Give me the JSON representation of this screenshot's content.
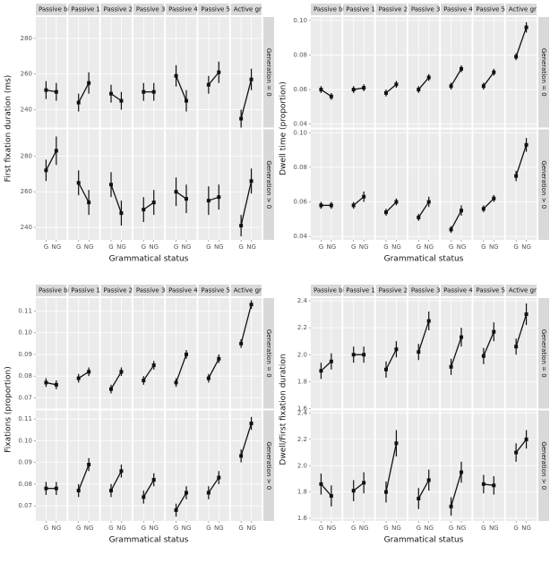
{
  "chart_data": [
    {
      "type": "facet-line",
      "y_label": "First fixation duration (ms)",
      "x_label": "Grammatical status",
      "categories": [
        "G",
        "NG"
      ],
      "columns": [
        "Passive bl",
        "Passive 1",
        "Passive 2",
        "Passive 3",
        "Passive 4",
        "Passive 5",
        "Active gr"
      ],
      "rows": [
        {
          "label": "Generation = 0",
          "ylim": [
            230,
            292
          ],
          "yticks": [
            240,
            260,
            280
          ]
        },
        {
          "label": "Generation > 0",
          "ylim": [
            233,
            295
          ],
          "yticks": [
            240,
            260,
            280
          ]
        }
      ],
      "panels": [
        [
          {
            "values": [
              251,
              250
            ],
            "errors": [
              5,
              5
            ]
          },
          {
            "values": [
              244,
              255
            ],
            "errors": [
              5,
              6
            ]
          },
          {
            "values": [
              249,
              245
            ],
            "errors": [
              5,
              5
            ]
          },
          {
            "values": [
              250,
              250
            ],
            "errors": [
              5,
              5
            ]
          },
          {
            "values": [
              259,
              245
            ],
            "errors": [
              6,
              6
            ]
          },
          {
            "values": [
              254,
              261
            ],
            "errors": [
              5,
              6
            ]
          },
          {
            "values": [
              235,
              257
            ],
            "errors": [
              5,
              6
            ]
          }
        ],
        [
          {
            "values": [
              272,
              283
            ],
            "errors": [
              6,
              8
            ]
          },
          {
            "values": [
              265,
              254
            ],
            "errors": [
              7,
              7
            ]
          },
          {
            "values": [
              264,
              248
            ],
            "errors": [
              7,
              7
            ]
          },
          {
            "values": [
              250,
              254
            ],
            "errors": [
              7,
              7
            ]
          },
          {
            "values": [
              260,
              256
            ],
            "errors": [
              8,
              8
            ]
          },
          {
            "values": [
              255,
              257
            ],
            "errors": [
              8,
              7
            ]
          },
          {
            "values": [
              241,
              266
            ],
            "errors": [
              6,
              7
            ]
          }
        ]
      ]
    },
    {
      "type": "facet-line",
      "y_label": "Dwell time (proportion)",
      "x_label": "Grammatical status",
      "categories": [
        "G",
        "NG"
      ],
      "columns": [
        "Passive bl",
        "Passive 1",
        "Passive 2",
        "Passive 3",
        "Passive 4",
        "Passive 5",
        "Active gr"
      ],
      "rows": [
        {
          "label": "Generation = 0",
          "ylim": [
            0.038,
            0.102
          ],
          "yticks": [
            0.04,
            0.06,
            0.08,
            {
              "value": 0.1,
              "label": "0.10"
            }
          ]
        },
        {
          "label": "Generation > 0",
          "ylim": [
            0.038,
            0.102
          ],
          "yticks": [
            0.04,
            0.06,
            0.08,
            {
              "value": 0.1,
              "label": "0.10"
            }
          ]
        }
      ],
      "panels": [
        [
          {
            "values": [
              0.06,
              0.056
            ],
            "errors": [
              0.002,
              0.002
            ]
          },
          {
            "values": [
              0.06,
              0.061
            ],
            "errors": [
              0.002,
              0.002
            ]
          },
          {
            "values": [
              0.058,
              0.063
            ],
            "errors": [
              0.002,
              0.002
            ]
          },
          {
            "values": [
              0.06,
              0.067
            ],
            "errors": [
              0.002,
              0.002
            ]
          },
          {
            "values": [
              0.062,
              0.072
            ],
            "errors": [
              0.002,
              0.002
            ]
          },
          {
            "values": [
              0.062,
              0.07
            ],
            "errors": [
              0.002,
              0.002
            ]
          },
          {
            "values": [
              0.079,
              0.096
            ],
            "errors": [
              0.002,
              0.003
            ]
          }
        ],
        [
          {
            "values": [
              0.058,
              0.058
            ],
            "errors": [
              0.002,
              0.002
            ]
          },
          {
            "values": [
              0.058,
              0.063
            ],
            "errors": [
              0.002,
              0.003
            ]
          },
          {
            "values": [
              0.054,
              0.06
            ],
            "errors": [
              0.002,
              0.002
            ]
          },
          {
            "values": [
              0.051,
              0.06
            ],
            "errors": [
              0.002,
              0.003
            ]
          },
          {
            "values": [
              0.044,
              0.055
            ],
            "errors": [
              0.002,
              0.003
            ]
          },
          {
            "values": [
              0.056,
              0.062
            ],
            "errors": [
              0.002,
              0.002
            ]
          },
          {
            "values": [
              0.075,
              0.093
            ],
            "errors": [
              0.003,
              0.004
            ]
          }
        ]
      ]
    },
    {
      "type": "facet-line",
      "y_label": "Fixations (proportion)",
      "x_label": "Grammatical status",
      "categories": [
        "G",
        "NG"
      ],
      "columns": [
        "Passive bl",
        "Passive 1",
        "Passive 2",
        "Passive 3",
        "Passive 4",
        "Passive 5",
        "Active gr"
      ],
      "rows": [
        {
          "label": "Generation = 0",
          "ylim": [
            0.065,
            0.116
          ],
          "yticks": [
            0.07,
            0.08,
            0.09,
            {
              "value": 0.1,
              "label": "0.10"
            },
            0.11
          ]
        },
        {
          "label": "Generation > 0",
          "ylim": [
            0.063,
            0.114
          ],
          "yticks": [
            0.07,
            0.08,
            0.09,
            {
              "value": 0.1,
              "label": "0.10"
            },
            0.11
          ]
        }
      ],
      "panels": [
        [
          {
            "values": [
              0.077,
              0.076
            ],
            "errors": [
              0.002,
              0.002
            ]
          },
          {
            "values": [
              0.079,
              0.082
            ],
            "errors": [
              0.002,
              0.002
            ]
          },
          {
            "values": [
              0.074,
              0.082
            ],
            "errors": [
              0.002,
              0.002
            ]
          },
          {
            "values": [
              0.078,
              0.085
            ],
            "errors": [
              0.002,
              0.002
            ]
          },
          {
            "values": [
              0.077,
              0.09
            ],
            "errors": [
              0.002,
              0.002
            ]
          },
          {
            "values": [
              0.079,
              0.088
            ],
            "errors": [
              0.002,
              0.002
            ]
          },
          {
            "values": [
              0.095,
              0.113
            ],
            "errors": [
              0.002,
              0.002
            ]
          }
        ],
        [
          {
            "values": [
              0.078,
              0.078
            ],
            "errors": [
              0.003,
              0.003
            ]
          },
          {
            "values": [
              0.077,
              0.089
            ],
            "errors": [
              0.003,
              0.003
            ]
          },
          {
            "values": [
              0.077,
              0.086
            ],
            "errors": [
              0.003,
              0.003
            ]
          },
          {
            "values": [
              0.074,
              0.082
            ],
            "errors": [
              0.003,
              0.003
            ]
          },
          {
            "values": [
              0.068,
              0.076
            ],
            "errors": [
              0.003,
              0.003
            ]
          },
          {
            "values": [
              0.076,
              0.083
            ],
            "errors": [
              0.003,
              0.003
            ]
          },
          {
            "values": [
              0.093,
              0.108
            ],
            "errors": [
              0.003,
              0.003
            ]
          }
        ]
      ]
    },
    {
      "type": "facet-line",
      "y_label": "Dwell/First fixation duration",
      "x_label": "Grammatical status",
      "categories": [
        "G",
        "NG"
      ],
      "columns": [
        "Passive bl",
        "Passive 1",
        "Passive 2",
        "Passive 3",
        "Passive 4",
        "Passive 5",
        "Active gr"
      ],
      "rows": [
        {
          "label": "Generation = 0",
          "ylim": [
            1.6,
            2.42
          ],
          "yticks": [
            1.6,
            1.8,
            {
              "value": 2,
              "label": "2.0"
            },
            2.2,
            2.4
          ]
        },
        {
          "label": "Generation > 0",
          "ylim": [
            1.58,
            2.42
          ],
          "yticks": [
            1.6,
            1.8,
            {
              "value": 2,
              "label": "2.0"
            },
            2.2,
            2.4
          ]
        }
      ],
      "panels": [
        [
          {
            "values": [
              1.88,
              1.95
            ],
            "errors": [
              0.06,
              0.06
            ]
          },
          {
            "values": [
              2.0,
              2.0
            ],
            "errors": [
              0.06,
              0.06
            ]
          },
          {
            "values": [
              1.89,
              2.04
            ],
            "errors": [
              0.06,
              0.06
            ]
          },
          {
            "values": [
              2.02,
              2.25
            ],
            "errors": [
              0.06,
              0.07
            ]
          },
          {
            "values": [
              1.91,
              2.13
            ],
            "errors": [
              0.06,
              0.07
            ]
          },
          {
            "values": [
              1.99,
              2.17
            ],
            "errors": [
              0.06,
              0.07
            ]
          },
          {
            "values": [
              2.06,
              2.3
            ],
            "errors": [
              0.06,
              0.08
            ]
          }
        ],
        [
          {
            "values": [
              1.86,
              1.77
            ],
            "errors": [
              0.08,
              0.08
            ]
          },
          {
            "values": [
              1.81,
              1.87
            ],
            "errors": [
              0.08,
              0.08
            ]
          },
          {
            "values": [
              1.8,
              2.17
            ],
            "errors": [
              0.08,
              0.1
            ]
          },
          {
            "values": [
              1.75,
              1.89
            ],
            "errors": [
              0.08,
              0.08
            ]
          },
          {
            "values": [
              1.69,
              1.95
            ],
            "errors": [
              0.07,
              0.08
            ]
          },
          {
            "values": [
              1.86,
              1.85
            ],
            "errors": [
              0.07,
              0.07
            ]
          },
          {
            "values": [
              2.1,
              2.2
            ],
            "errors": [
              0.07,
              0.07
            ]
          }
        ]
      ]
    }
  ]
}
